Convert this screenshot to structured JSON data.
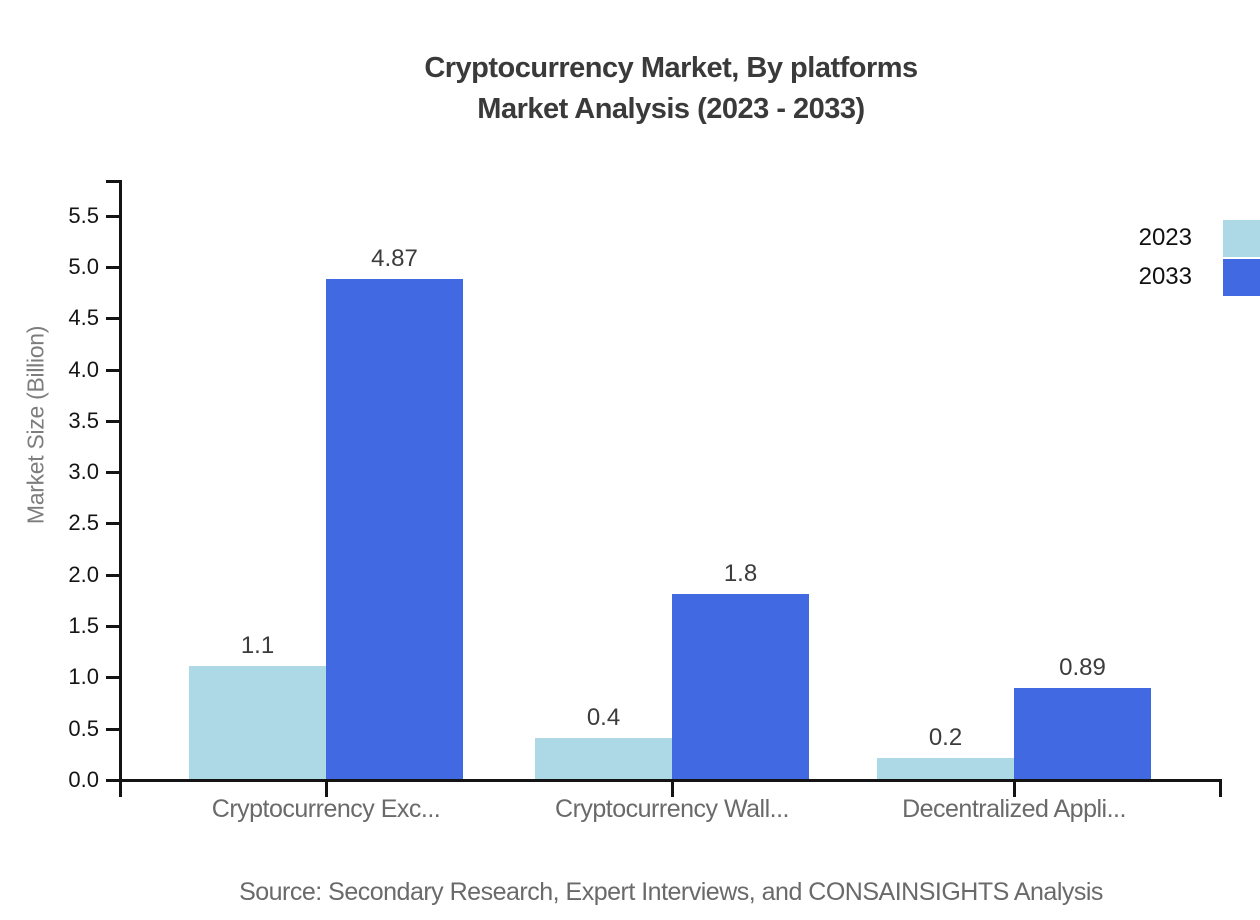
{
  "title": {
    "line1": "Cryptocurrency Market, By platforms",
    "line2": "Market Analysis (2023 - 2033)"
  },
  "y_axis": {
    "label": "Market Size (Billion)",
    "tick_labels": [
      "0.0",
      "0.5",
      "1.0",
      "1.5",
      "2.0",
      "2.5",
      "3.0",
      "3.5",
      "4.0",
      "4.5",
      "5.0",
      "5.5"
    ]
  },
  "legend": {
    "items": [
      {
        "label": "2023",
        "color": "#add8e6"
      },
      {
        "label": "2033",
        "color": "#4169e1"
      }
    ]
  },
  "footer": {
    "source": "Source: Secondary Research, Expert Interviews, and CONSAINSIGHTS Analysis"
  },
  "colors": {
    "axis": "#141414",
    "title_text": "#3a3a3a",
    "muted_text": "#6a6a6a",
    "bar_2023": "#add8e6",
    "bar_2033": "#4169e1"
  },
  "chart_data": {
    "type": "bar",
    "title": "Cryptocurrency Market, By platforms Market Analysis (2023 - 2033)",
    "categories": [
      "Cryptocurrency Exc...",
      "Cryptocurrency Wall...",
      "Decentralized Appli..."
    ],
    "series": [
      {
        "name": "2023",
        "color": "#add8e6",
        "values": [
          1.1,
          0.4,
          0.2
        ],
        "value_labels": [
          "1.1",
          "0.4",
          "0.2"
        ]
      },
      {
        "name": "2033",
        "color": "#4169e1",
        "values": [
          4.87,
          1.8,
          0.89
        ],
        "value_labels": [
          "4.87",
          "1.8",
          "0.89"
        ]
      }
    ],
    "xlabel": "",
    "ylabel": "Market Size (Billion)",
    "ylim": [
      0,
      5.85
    ],
    "yticks": [
      0,
      0.5,
      1.0,
      1.5,
      2.0,
      2.5,
      3.0,
      3.5,
      4.0,
      4.5,
      5.0,
      5.5
    ],
    "grid": false,
    "legend_position": "top-right",
    "source": "Source: Secondary Research, Expert Interviews, and CONSAINSIGHTS Analysis"
  }
}
